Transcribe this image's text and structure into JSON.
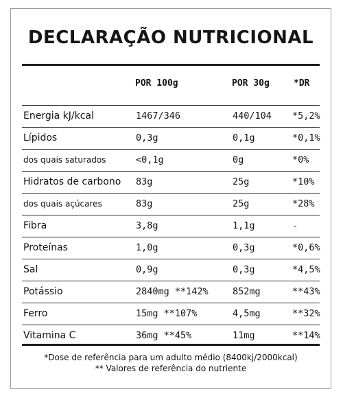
{
  "title": "DECLARAÇÃO NUTRICIONAL",
  "headers": {
    "per100": "POR 100g",
    "per30": "POR 30g",
    "dr": "*DR"
  },
  "rows": [
    {
      "name": "Energia kJ/kcal",
      "per100": "1467/346",
      "per30": "440/104",
      "dr": "*5,2%",
      "sub": false
    },
    {
      "name": "Lípidos",
      "per100": "0,3g",
      "per30": "0,1g",
      "dr": "*0,1%",
      "sub": false
    },
    {
      "name": "dos quais saturados",
      "per100": "<0,1g",
      "per30": "0g",
      "dr": "*0%",
      "sub": true
    },
    {
      "name": "Hidratos de carbono",
      "per100": "83g",
      "per30": "25g",
      "dr": "*10%",
      "sub": false
    },
    {
      "name": "dos quais açúcares",
      "per100": "83g",
      "per30": "25g",
      "dr": "*28%",
      "sub": true
    },
    {
      "name": "Fibra",
      "per100": "3,8g",
      "per30": "1,1g",
      "dr": "-",
      "sub": false
    },
    {
      "name": "Proteínas",
      "per100": "1,0g",
      "per30": "0,3g",
      "dr": "*0,6%",
      "sub": false
    },
    {
      "name": "Sal",
      "per100": "0,9g",
      "per30": "0,3g",
      "dr": "*4,5%",
      "sub": false
    },
    {
      "name": "Potássio",
      "per100": "2840mg **142%",
      "per30": "852mg",
      "dr": "**43%",
      "sub": false
    },
    {
      "name": "Ferro",
      "per100": "15mg **107%",
      "per30": "4,5mg",
      "dr": "**32%",
      "sub": false
    },
    {
      "name": "Vitamina C",
      "per100": "36mg **45%",
      "per30": "11mg",
      "dr": "**14%",
      "sub": false
    }
  ],
  "footer": {
    "line1": "*Dose de referência para um adulto médio (8400kj/2000kcal)",
    "line2": "** Valores de referência do nutriente"
  }
}
